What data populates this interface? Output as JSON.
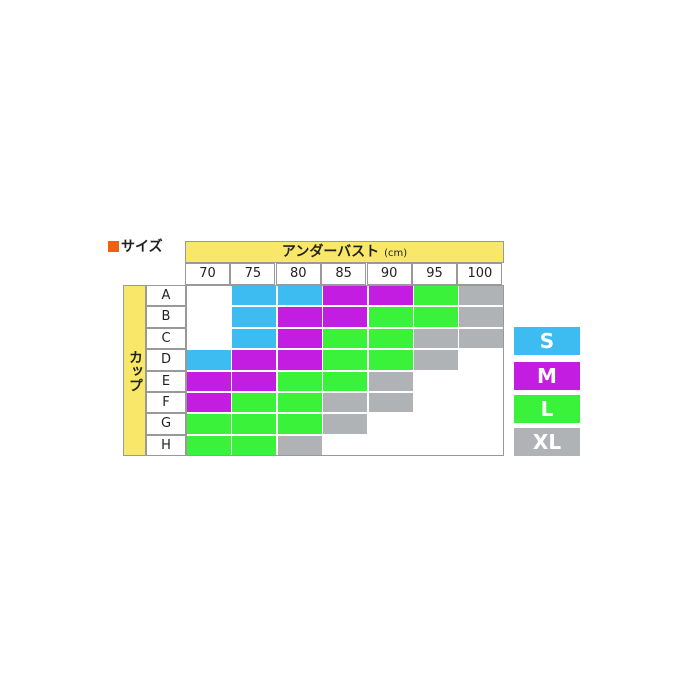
{
  "chart_data": {
    "type": "table",
    "title": "サイズ",
    "column_header": "アンダーバスト",
    "column_unit": "(cm)",
    "row_header": "カップ",
    "columns": [
      "70",
      "75",
      "80",
      "85",
      "90",
      "95",
      "100"
    ],
    "rows": [
      "A",
      "B",
      "C",
      "D",
      "E",
      "F",
      "G",
      "H"
    ],
    "values": [
      [
        null,
        "S",
        "S",
        "M",
        "M",
        "L",
        "XL"
      ],
      [
        null,
        "S",
        "M",
        "M",
        "L",
        "L",
        "XL"
      ],
      [
        null,
        "S",
        "M",
        "L",
        "L",
        "XL",
        "XL"
      ],
      [
        "S",
        "M",
        "M",
        "L",
        "L",
        "XL",
        null
      ],
      [
        "M",
        "M",
        "L",
        "L",
        "XL",
        null,
        null
      ],
      [
        "M",
        "L",
        "L",
        "XL",
        "XL",
        null,
        null
      ],
      [
        "L",
        "L",
        "L",
        "XL",
        null,
        null,
        null
      ],
      [
        "L",
        "L",
        "XL",
        null,
        null,
        null,
        null
      ]
    ],
    "legend": [
      {
        "label": "S",
        "color": "#3cbcf0"
      },
      {
        "label": "M",
        "color": "#c21de0"
      },
      {
        "label": "L",
        "color": "#3af23a"
      },
      {
        "label": "XL",
        "color": "#b0b3b5"
      }
    ],
    "legend_placement": "right"
  }
}
